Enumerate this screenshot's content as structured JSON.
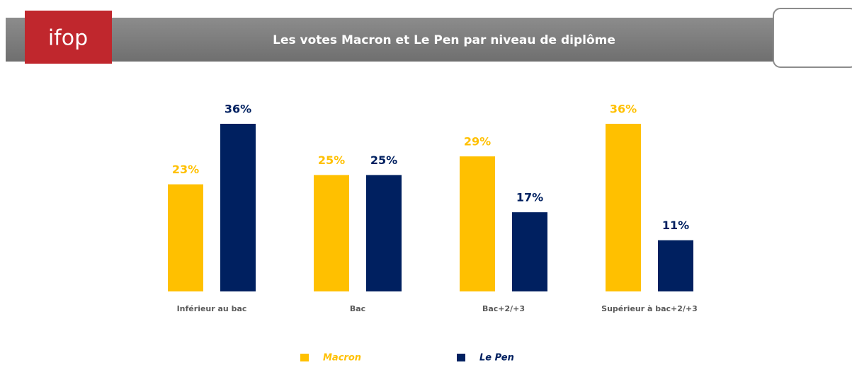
{
  "logo": "ifop",
  "chart_data": {
    "type": "bar",
    "title": "Les votes Macron et Le Pen par niveau de diplôme",
    "categories": [
      "Inférieur au bac",
      "Bac",
      "Bac+2/+3",
      "Supérieur à bac+2/+3"
    ],
    "series": [
      {
        "name": "Macron",
        "color": "#FFC000",
        "values": [
          23,
          25,
          29,
          36
        ],
        "value_labels": [
          "23%",
          "25%",
          "29%",
          "36%"
        ]
      },
      {
        "name": "Le Pen",
        "color": "#002060",
        "values": [
          36,
          25,
          17,
          11
        ],
        "value_labels": [
          "36%",
          "25%",
          "17%",
          "11%"
        ]
      }
    ]
  }
}
